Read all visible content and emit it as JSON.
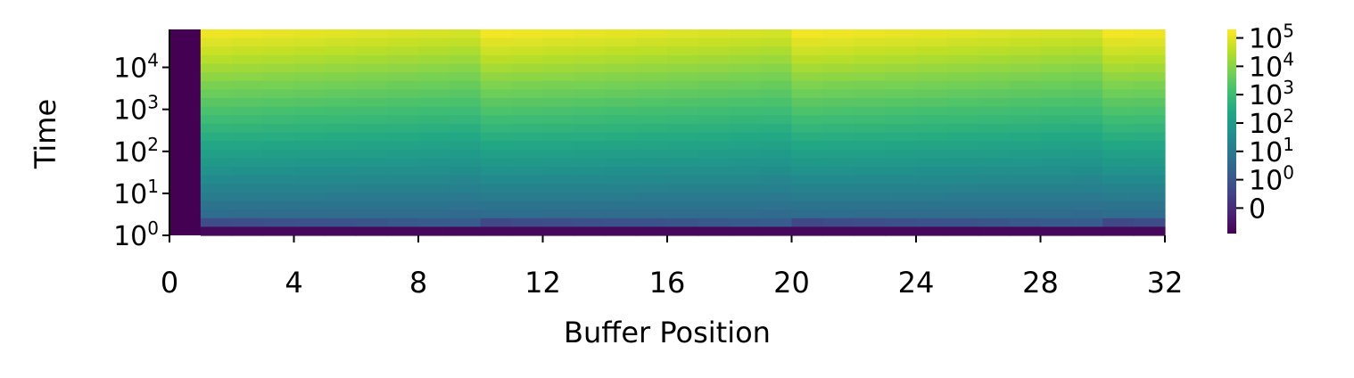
{
  "chart_data": {
    "type": "heatmap",
    "colormap": "viridis",
    "xlabel": "Buffer Position",
    "ylabel": "Time",
    "x_ticks": [
      "0",
      "4",
      "8",
      "12",
      "16",
      "20",
      "24",
      "28",
      "32"
    ],
    "x_range": [
      0,
      32
    ],
    "y_scale": "log",
    "y_range": [
      1,
      80000
    ],
    "y_ticks": [
      {
        "value": 1,
        "base": "10",
        "exp": "0"
      },
      {
        "value": 10,
        "base": "10",
        "exp": "1"
      },
      {
        "value": 100,
        "base": "10",
        "exp": "2"
      },
      {
        "value": 1000,
        "base": "10",
        "exp": "3"
      },
      {
        "value": 10000,
        "base": "10",
        "exp": "4"
      }
    ],
    "colorbar": {
      "scale": "symlog",
      "ticks": [
        {
          "value": 0,
          "base": "0",
          "exp": ""
        },
        {
          "value": 1,
          "base": "10",
          "exp": "0"
        },
        {
          "value": 10,
          "base": "10",
          "exp": "1"
        },
        {
          "value": 100,
          "base": "10",
          "exp": "2"
        },
        {
          "value": 1000,
          "base": "10",
          "exp": "3"
        },
        {
          "value": 10000,
          "base": "10",
          "exp": "4"
        },
        {
          "value": 100000,
          "base": "10",
          "exp": "5"
        }
      ]
    },
    "columns": 32,
    "first_column": "empty"
  }
}
